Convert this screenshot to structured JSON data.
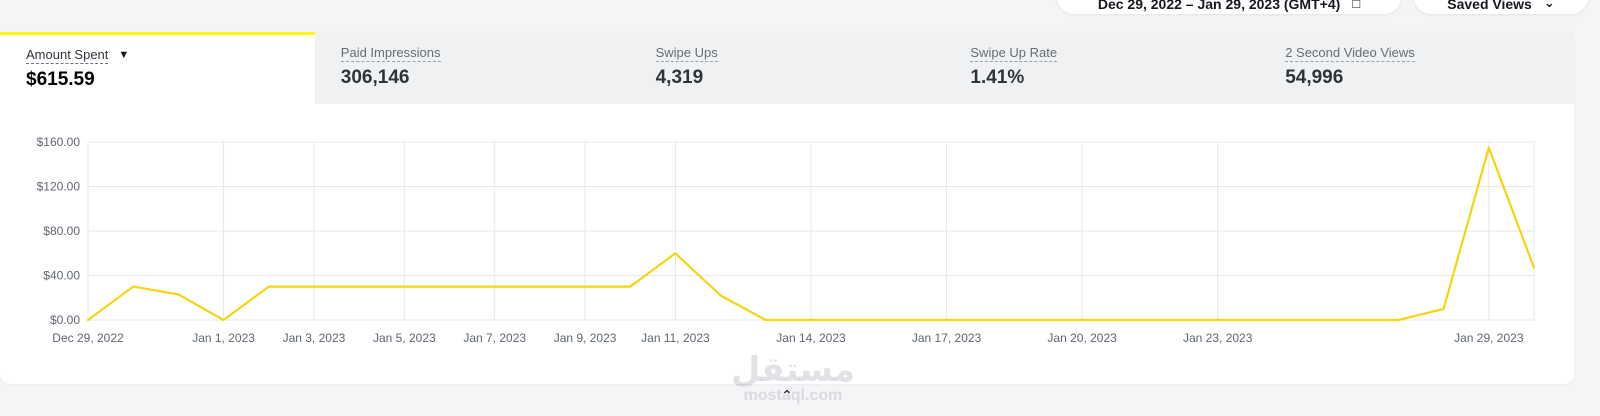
{
  "header": {
    "date_range": "Dec 29, 2022 – Jan 29, 2023 (GMT+4)",
    "date_range_icon": "calendar-icon",
    "saved_views": "Saved Views",
    "saved_views_icon": "chevron-down-icon"
  },
  "metrics": [
    {
      "label": "Amount Spent",
      "value": "$615.59",
      "active": true
    },
    {
      "label": "Paid Impressions",
      "value": "306,146",
      "active": false
    },
    {
      "label": "Swipe Ups",
      "value": "4,319",
      "active": false
    },
    {
      "label": "Swipe Up Rate",
      "value": "1.41%",
      "active": false
    },
    {
      "label": "2 Second Video Views",
      "value": "54,996",
      "active": false
    }
  ],
  "colors": {
    "accent": "#fffc00",
    "line": "#f5d410",
    "grid": "#e5e7ea"
  },
  "chart_data": {
    "type": "line",
    "series_metric": "Amount Spent",
    "x": [
      "2022-12-29",
      "2022-12-30",
      "2022-12-31",
      "2023-01-01",
      "2023-01-02",
      "2023-01-03",
      "2023-01-04",
      "2023-01-05",
      "2023-01-06",
      "2023-01-07",
      "2023-01-08",
      "2023-01-09",
      "2023-01-10",
      "2023-01-11",
      "2023-01-12",
      "2023-01-13",
      "2023-01-14",
      "2023-01-15",
      "2023-01-16",
      "2023-01-17",
      "2023-01-18",
      "2023-01-19",
      "2023-01-20",
      "2023-01-21",
      "2023-01-22",
      "2023-01-23",
      "2023-01-24",
      "2023-01-25",
      "2023-01-26",
      "2023-01-27",
      "2023-01-28",
      "2023-01-29",
      "2023-01-30"
    ],
    "values": [
      0,
      30,
      23,
      0,
      30,
      30,
      30,
      30,
      30,
      30,
      30,
      30,
      30,
      60,
      22,
      0,
      0,
      0,
      0,
      0,
      0,
      0,
      0,
      0,
      0,
      0,
      0,
      0,
      0,
      0,
      10,
      155,
      47
    ],
    "x_ticks": [
      {
        "date": "2022-12-29",
        "label": "Dec 29, 2022"
      },
      {
        "date": "2023-01-01",
        "label": "Jan 1, 2023"
      },
      {
        "date": "2023-01-03",
        "label": "Jan 3, 2023"
      },
      {
        "date": "2023-01-05",
        "label": "Jan 5, 2023"
      },
      {
        "date": "2023-01-07",
        "label": "Jan 7, 2023"
      },
      {
        "date": "2023-01-09",
        "label": "Jan 9, 2023"
      },
      {
        "date": "2023-01-11",
        "label": "Jan 11, 2023"
      },
      {
        "date": "2023-01-14",
        "label": "Jan 14, 2023"
      },
      {
        "date": "2023-01-17",
        "label": "Jan 17, 2023"
      },
      {
        "date": "2023-01-20",
        "label": "Jan 20, 2023"
      },
      {
        "date": "2023-01-23",
        "label": "Jan 23, 2023"
      },
      {
        "date": "2023-01-29",
        "label": "Jan 29, 2023"
      }
    ],
    "y_ticks": [
      {
        "value": 0,
        "label": "$0.00"
      },
      {
        "value": 40,
        "label": "$40.00"
      },
      {
        "value": 80,
        "label": "$80.00"
      },
      {
        "value": 120,
        "label": "$120.00"
      },
      {
        "value": 160,
        "label": "$160.00"
      }
    ],
    "ylim": [
      0,
      160
    ],
    "xlim": [
      "2022-12-29",
      "2023-01-30"
    ],
    "grid": true,
    "legend": "none"
  },
  "watermark": {
    "arabic": "مستقل",
    "latin": "mostaql.com"
  },
  "collapse_icon": "chevron-up-icon"
}
